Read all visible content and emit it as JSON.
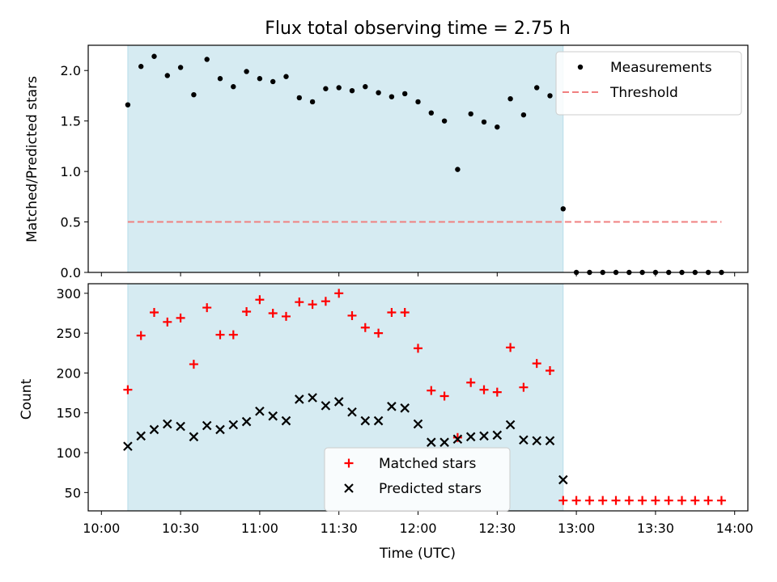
{
  "chart_data": [
    {
      "type": "scatter",
      "title": "Flux total observing time = 2.75 h",
      "ylabel": "Matched/Predicted stars",
      "xlim": [
        "09:55",
        "14:05"
      ],
      "ylim": [
        0,
        2.25
      ],
      "yticks": [
        "0.0",
        "0.5",
        "1.0",
        "1.5",
        "2.0"
      ],
      "shaded_interval": [
        "10:10",
        "12:55"
      ],
      "shade_color": "#add8e6",
      "legend_position": "top-right",
      "series": [
        {
          "name": "Measurements",
          "marker": "dot",
          "color": "#000000",
          "x": [
            "10:10",
            "10:15",
            "10:20",
            "10:25",
            "10:30",
            "10:35",
            "10:40",
            "10:45",
            "10:50",
            "10:55",
            "11:00",
            "11:05",
            "11:10",
            "11:15",
            "11:20",
            "11:25",
            "11:30",
            "11:35",
            "11:40",
            "11:45",
            "11:50",
            "11:55",
            "12:00",
            "12:05",
            "12:10",
            "12:15",
            "12:20",
            "12:25",
            "12:30",
            "12:35",
            "12:40",
            "12:45",
            "12:50",
            "12:55",
            "13:00",
            "13:05",
            "13:10",
            "13:15",
            "13:20",
            "13:25",
            "13:30",
            "13:35",
            "13:40",
            "13:45",
            "13:50",
            "13:55"
          ],
          "y": [
            1.66,
            2.04,
            2.14,
            1.95,
            2.03,
            1.76,
            2.11,
            1.92,
            1.84,
            1.99,
            1.92,
            1.89,
            1.94,
            1.73,
            1.69,
            1.82,
            1.83,
            1.8,
            1.84,
            1.78,
            1.74,
            1.77,
            1.69,
            1.58,
            1.5,
            1.02,
            1.57,
            1.49,
            1.44,
            1.72,
            1.56,
            1.83,
            1.75,
            0.63,
            0,
            0,
            0,
            0,
            0,
            0,
            0,
            0,
            0,
            0,
            0,
            0
          ]
        },
        {
          "name": "Threshold",
          "marker": "dashed-line",
          "color": "#f08080",
          "x": [
            "10:10",
            "13:55"
          ],
          "y": [
            0.5,
            0.5
          ]
        }
      ]
    },
    {
      "type": "scatter",
      "xlabel": "Time (UTC)",
      "ylabel": "Count",
      "xlim": [
        "09:55",
        "14:05"
      ],
      "ylim": [
        27,
        312
      ],
      "xticks": [
        "10:00",
        "10:30",
        "11:00",
        "11:30",
        "12:00",
        "12:30",
        "13:00",
        "13:30",
        "14:00"
      ],
      "yticks": [
        "50",
        "100",
        "150",
        "200",
        "250",
        "300"
      ],
      "shaded_interval": [
        "10:10",
        "12:55"
      ],
      "shade_color": "#add8e6",
      "legend_position": "lower-center",
      "series": [
        {
          "name": "Matched stars",
          "marker": "plus",
          "color": "#ff0000",
          "x": [
            "10:10",
            "10:15",
            "10:20",
            "10:25",
            "10:30",
            "10:35",
            "10:40",
            "10:45",
            "10:50",
            "10:55",
            "11:00",
            "11:05",
            "11:10",
            "11:15",
            "11:20",
            "11:25",
            "11:30",
            "11:35",
            "11:40",
            "11:45",
            "11:50",
            "11:55",
            "12:00",
            "12:05",
            "12:10",
            "12:15",
            "12:20",
            "12:25",
            "12:30",
            "12:35",
            "12:40",
            "12:45",
            "12:50",
            "12:55",
            "13:00",
            "13:05",
            "13:10",
            "13:15",
            "13:20",
            "13:25",
            "13:30",
            "13:35",
            "13:40",
            "13:45",
            "13:50",
            "13:55"
          ],
          "y": [
            179,
            247,
            276,
            264,
            269,
            211,
            282,
            248,
            248,
            277,
            292,
            275,
            271,
            289,
            286,
            290,
            300,
            272,
            257,
            250,
            276,
            276,
            231,
            178,
            171,
            119,
            188,
            179,
            176,
            232,
            182,
            212,
            203,
            40,
            40,
            40,
            40,
            40,
            40,
            40,
            40,
            40,
            40,
            40,
            40,
            40
          ]
        },
        {
          "name": "Predicted stars",
          "marker": "x",
          "color": "#000000",
          "x": [
            "10:10",
            "10:15",
            "10:20",
            "10:25",
            "10:30",
            "10:35",
            "10:40",
            "10:45",
            "10:50",
            "10:55",
            "11:00",
            "11:05",
            "11:10",
            "11:15",
            "11:20",
            "11:25",
            "11:30",
            "11:35",
            "11:40",
            "11:45",
            "11:50",
            "11:55",
            "12:00",
            "12:05",
            "12:10",
            "12:15",
            "12:20",
            "12:25",
            "12:30",
            "12:35",
            "12:40",
            "12:45",
            "12:50",
            "12:55"
          ],
          "y": [
            108,
            121,
            129,
            136,
            133,
            120,
            134,
            129,
            135,
            139,
            152,
            146,
            140,
            167,
            169,
            159,
            164,
            151,
            140,
            140,
            158,
            156,
            136,
            113,
            113,
            117,
            120,
            121,
            122,
            135,
            116,
            115,
            115,
            66
          ]
        }
      ]
    }
  ]
}
